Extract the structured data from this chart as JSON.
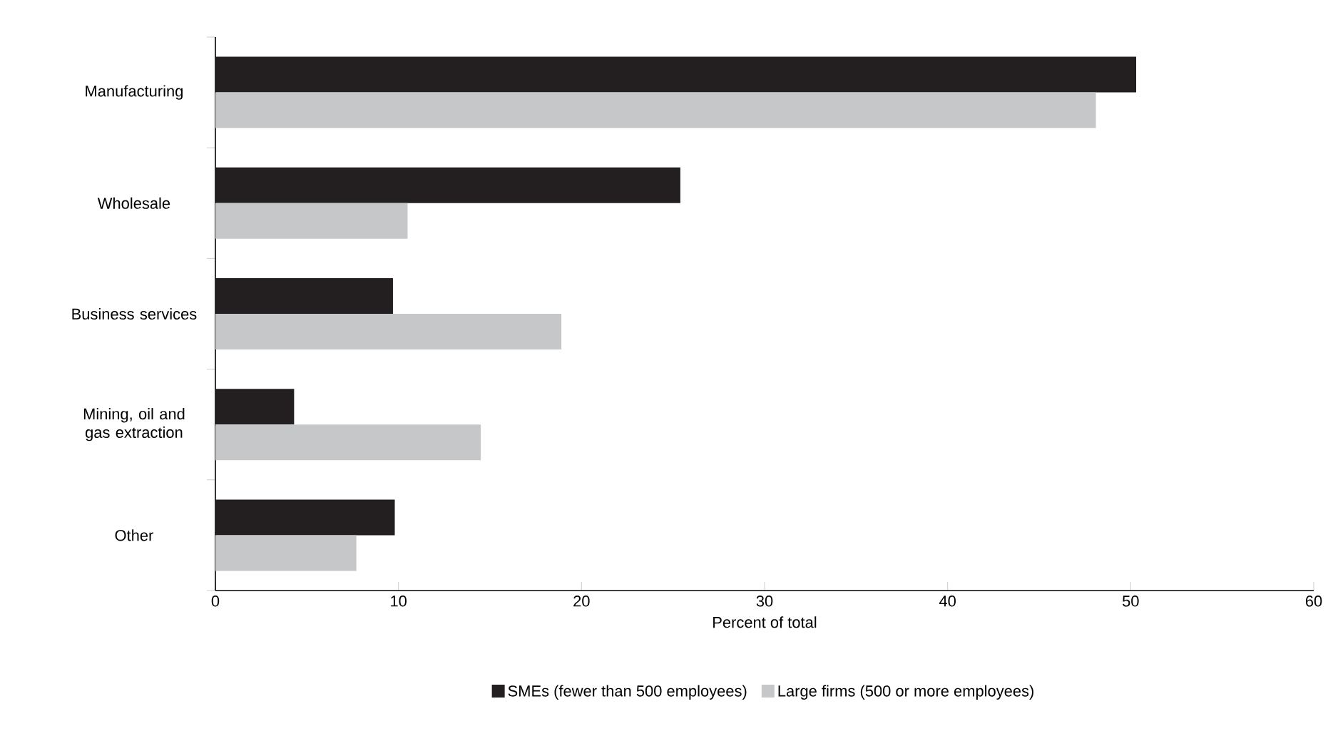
{
  "chart_data": {
    "type": "bar",
    "orientation": "horizontal",
    "categories": [
      "Manufacturing",
      "Wholesale",
      "Business services",
      "Mining, oil and gas extraction",
      "Other"
    ],
    "series": [
      {
        "name": "SMEs (fewer than 500 employees)",
        "color": "#231f20",
        "values": [
          50.3,
          25.4,
          9.7,
          4.3,
          9.8
        ]
      },
      {
        "name": "Large firms (500 or more employees)",
        "color": "#c6c7c9",
        "values": [
          48.1,
          10.5,
          18.9,
          14.5,
          7.7
        ]
      }
    ],
    "xlabel": "Percent of total",
    "xlim": [
      0,
      60
    ],
    "xticks": [
      0,
      10,
      20,
      30,
      40,
      50,
      60
    ],
    "grid": false,
    "legend": "bottom"
  }
}
